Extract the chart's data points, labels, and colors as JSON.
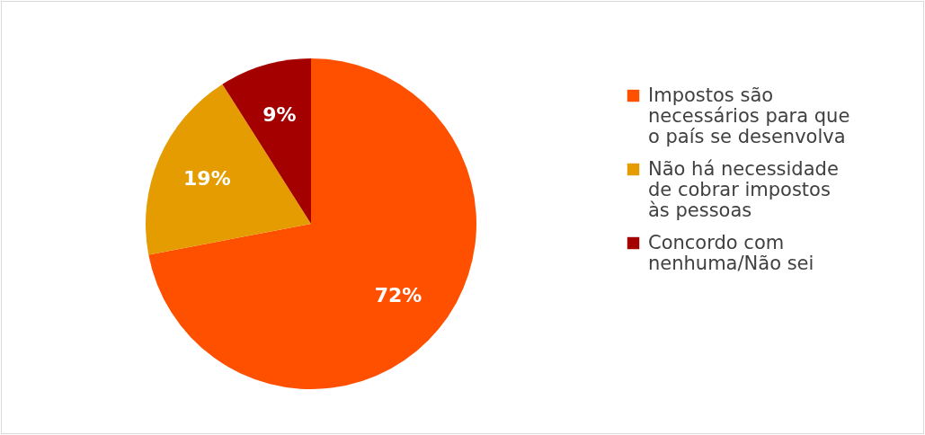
{
  "chart_data": {
    "type": "pie",
    "categories": [
      "Impostos são necessários para que o país se desenvolva",
      "Não há necessidade de cobrar impostos às pessoas",
      "Concordo com nenhuma/Não sei"
    ],
    "values": [
      72,
      19,
      9
    ],
    "colors": [
      "#ff5000",
      "#e59c00",
      "#a50000"
    ],
    "value_labels": [
      "72%",
      "19%",
      "9%"
    ],
    "legend": "right"
  }
}
